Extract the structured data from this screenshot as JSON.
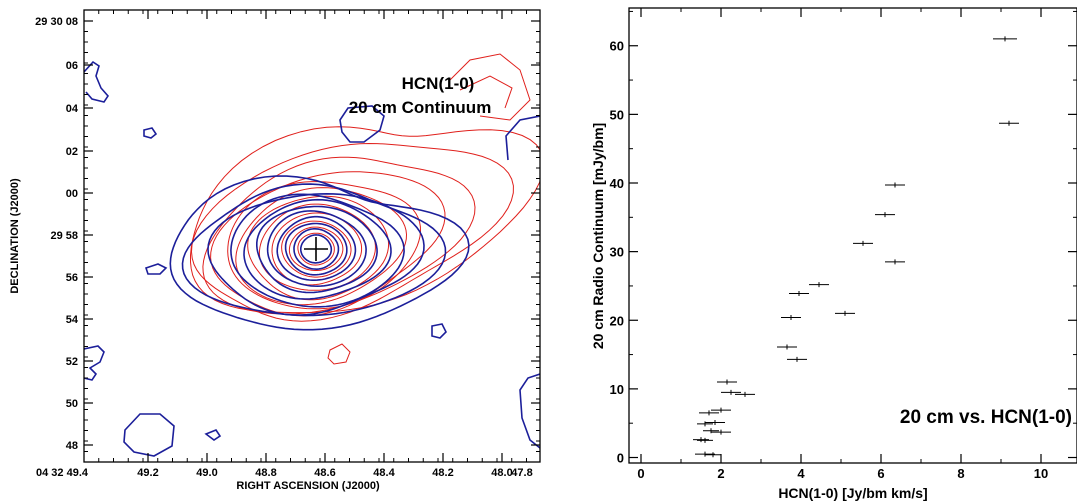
{
  "chart_data": [
    {
      "type": "contour",
      "xlabel": "RIGHT ASCENSION (J2000)",
      "ylabel": "DECLINATION (J2000)",
      "x_ticks": [
        "04 32 49.4",
        "49.2",
        "49.0",
        "48.8",
        "48.6",
        "48.4",
        "48.2",
        "48.0",
        "47.8"
      ],
      "y_ticks": [
        "29 30 08",
        "06",
        "04",
        "02",
        "00",
        "29 58",
        "56",
        "54",
        "52",
        "50",
        "48"
      ],
      "legend": [
        "HCN(1-0)",
        "20 cm Continuum"
      ],
      "series": [
        {
          "color": "#1c1f9a"
        },
        {
          "color": "#e0201c"
        }
      ],
      "marker": {
        "label": "+"
      }
    },
    {
      "type": "scatter",
      "title": "20 cm vs. HCN(1-0)",
      "xlabel": "HCN(1-0) [Jy/bm km/s]",
      "ylabel": "20 cm Radio Continuum [mJy/bm]",
      "xlim": [
        -0.3,
        10.9
      ],
      "ylim": [
        -0.8,
        65.5
      ],
      "x_ticks": [
        0,
        2,
        4,
        6,
        8,
        10
      ],
      "y_ticks": [
        0,
        10,
        20,
        30,
        40,
        50,
        60
      ],
      "points": [
        {
          "x": 9.1,
          "y": 61.0,
          "xerr": 0.3
        },
        {
          "x": 9.2,
          "y": 48.7,
          "xerr": 0.25
        },
        {
          "x": 6.35,
          "y": 39.7,
          "xerr": 0.25
        },
        {
          "x": 6.1,
          "y": 35.4,
          "xerr": 0.25
        },
        {
          "x": 6.35,
          "y": 28.5,
          "xerr": 0.25
        },
        {
          "x": 5.55,
          "y": 31.2,
          "xerr": 0.25
        },
        {
          "x": 4.45,
          "y": 25.2,
          "xerr": 0.25
        },
        {
          "x": 3.95,
          "y": 23.9,
          "xerr": 0.25
        },
        {
          "x": 3.75,
          "y": 20.4,
          "xerr": 0.25
        },
        {
          "x": 5.1,
          "y": 21.0,
          "xerr": 0.25
        },
        {
          "x": 3.65,
          "y": 16.1,
          "xerr": 0.25
        },
        {
          "x": 3.9,
          "y": 14.3,
          "xerr": 0.25
        },
        {
          "x": 2.15,
          "y": 11.0,
          "xerr": 0.25
        },
        {
          "x": 2.25,
          "y": 9.5,
          "xerr": 0.25
        },
        {
          "x": 2.6,
          "y": 9.2,
          "xerr": 0.25
        },
        {
          "x": 2.0,
          "y": 6.9,
          "xerr": 0.25
        },
        {
          "x": 1.7,
          "y": 6.5,
          "xerr": 0.25
        },
        {
          "x": 1.85,
          "y": 5.1,
          "xerr": 0.25
        },
        {
          "x": 1.6,
          "y": 4.9,
          "xerr": 0.2
        },
        {
          "x": 2.0,
          "y": 3.7,
          "xerr": 0.25
        },
        {
          "x": 1.75,
          "y": 3.9,
          "xerr": 0.2
        },
        {
          "x": 1.5,
          "y": 2.6,
          "xerr": 0.2
        },
        {
          "x": 1.6,
          "y": 2.5,
          "xerr": 0.2
        },
        {
          "x": 1.6,
          "y": 0.5,
          "xerr": 0.25
        },
        {
          "x": 1.8,
          "y": 0.4,
          "xerr": 0.2
        }
      ]
    }
  ]
}
